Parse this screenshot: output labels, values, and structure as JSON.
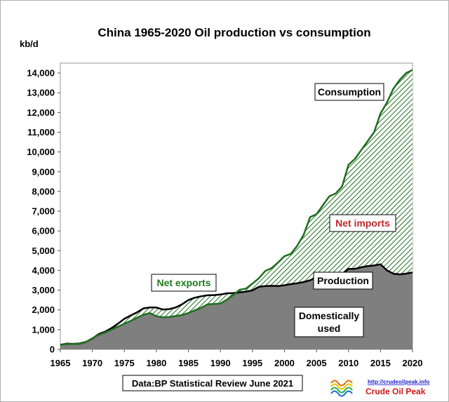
{
  "chart_data": {
    "type": "area",
    "title": "China  1965-2020 Oil production  vs consumption",
    "ylabel": "kb/d",
    "xlim": [
      1965,
      2020
    ],
    "ylim": [
      0,
      14500
    ],
    "x_ticks": [
      1965,
      1970,
      1975,
      1980,
      1985,
      1990,
      1995,
      2000,
      2005,
      2010,
      2015,
      2020
    ],
    "x_tick_labels": [
      "1965",
      "1970",
      "1975",
      "1980",
      "1985",
      "1990",
      "1995",
      "2000",
      "2005",
      "2010",
      "2015",
      "2020"
    ],
    "y_ticks": [
      0,
      1000,
      2000,
      3000,
      4000,
      5000,
      6000,
      7000,
      8000,
      9000,
      10000,
      11000,
      12000,
      13000,
      14000
    ],
    "y_tick_labels": [
      "0",
      "1,000",
      "2,000",
      "3,000",
      "4,000",
      "5,000",
      "6,000",
      "7,000",
      "8,000",
      "9,000",
      "10,000",
      "11,000",
      "12,000",
      "13,000",
      "14,000"
    ],
    "grid": false,
    "x": [
      1965,
      1966,
      1967,
      1968,
      1969,
      1970,
      1971,
      1972,
      1973,
      1974,
      1975,
      1976,
      1977,
      1978,
      1979,
      1980,
      1981,
      1982,
      1983,
      1984,
      1985,
      1986,
      1987,
      1988,
      1989,
      1990,
      1991,
      1992,
      1993,
      1994,
      1995,
      1996,
      1997,
      1998,
      1999,
      2000,
      2001,
      2002,
      2003,
      2004,
      2005,
      2006,
      2007,
      2008,
      2009,
      2010,
      2011,
      2012,
      2013,
      2014,
      2015,
      2016,
      2017,
      2018,
      2019,
      2020
    ],
    "series": [
      {
        "name": "Production",
        "color": "#000000",
        "values": [
          230,
          290,
          280,
          300,
          380,
          550,
          780,
          900,
          1080,
          1300,
          1550,
          1720,
          1880,
          2080,
          2120,
          2120,
          2020,
          2040,
          2120,
          2280,
          2500,
          2620,
          2690,
          2740,
          2750,
          2780,
          2840,
          2850,
          2890,
          2930,
          2990,
          3170,
          3210,
          3220,
          3210,
          3250,
          3310,
          3350,
          3410,
          3500,
          3640,
          3710,
          3740,
          3810,
          3800,
          4080,
          4080,
          4160,
          4220,
          4250,
          4310,
          4000,
          3840,
          3800,
          3840,
          3900
        ]
      },
      {
        "name": "Consumption",
        "color": "#1f6e1f",
        "values": [
          220,
          270,
          270,
          280,
          370,
          560,
          740,
          860,
          1000,
          1150,
          1300,
          1450,
          1610,
          1760,
          1840,
          1680,
          1630,
          1640,
          1690,
          1740,
          1840,
          1980,
          2110,
          2280,
          2300,
          2320,
          2520,
          2750,
          3020,
          3080,
          3330,
          3600,
          3970,
          4120,
          4400,
          4720,
          4840,
          5250,
          5800,
          6700,
          6850,
          7300,
          7750,
          7900,
          8250,
          9350,
          9650,
          10100,
          10550,
          11000,
          11950,
          12500,
          13200,
          13650,
          14000,
          14150
        ]
      }
    ],
    "area_labels": {
      "net_exports": "Net exports",
      "net_imports": "Net imports",
      "domestic": [
        "Domestically",
        "used"
      ]
    },
    "colors": {
      "domestic_fill": "#7f7f7f",
      "net_exports_hatch": "#1f6e1f",
      "net_imports_hatch": "#b03030",
      "net_imports_text": "#c0282d",
      "net_exports_text": "#1f7a1f"
    },
    "source_note": "Data:BP Statistical Review June 2021",
    "logo": {
      "url_text": "http://crudeoilpeak.info",
      "name": "Crude Oil Peak"
    }
  }
}
